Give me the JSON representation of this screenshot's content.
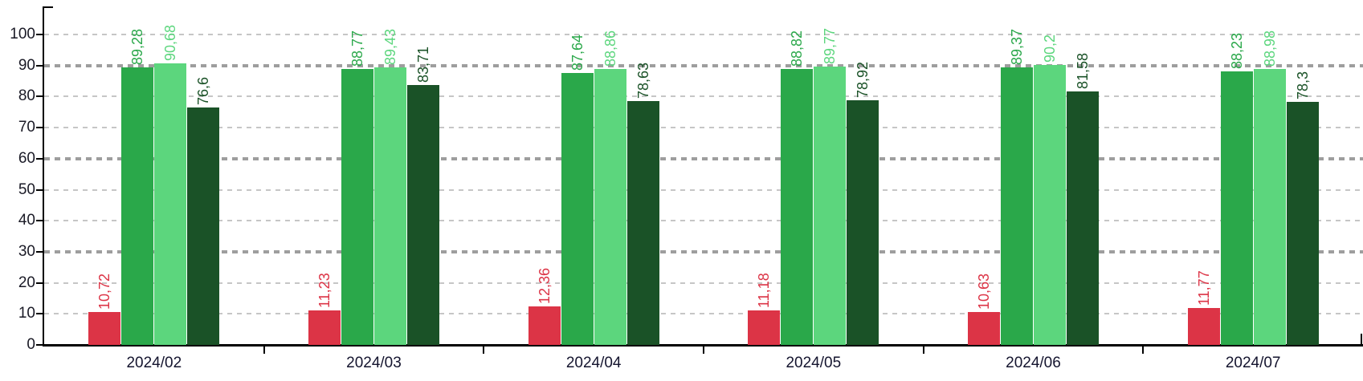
{
  "chart_data": {
    "type": "bar",
    "categories": [
      "2024/02",
      "2024/03",
      "2024/04",
      "2024/05",
      "2024/06",
      "2024/07"
    ],
    "series": [
      {
        "name": "red-series",
        "color": "#DC3446",
        "values": [
          10.72,
          11.23,
          12.36,
          11.18,
          10.63,
          11.77
        ],
        "labels": [
          "10,72",
          "11,23",
          "12,36",
          "11,18",
          "10,63",
          "11,77"
        ]
      },
      {
        "name": "green-series",
        "color": "#2AA84A",
        "values": [
          89.28,
          88.77,
          87.64,
          88.82,
          89.37,
          88.23
        ],
        "labels": [
          "89,28",
          "88,77",
          "87,64",
          "88,82",
          "89,37",
          "88,23"
        ]
      },
      {
        "name": "light-green-series",
        "color": "#5CD67D",
        "values": [
          90.68,
          89.43,
          88.86,
          89.77,
          90.2,
          88.98
        ],
        "labels": [
          "90,68",
          "89,43",
          "88,86",
          "89,77",
          "90,2",
          "88,98"
        ]
      },
      {
        "name": "dark-green-series",
        "color": "#1A5227",
        "values": [
          76.6,
          83.71,
          78.63,
          78.92,
          81.58,
          78.3
        ],
        "labels": [
          "76,6",
          "83,71",
          "78,63",
          "78,92",
          "81,58",
          "78,3"
        ]
      }
    ],
    "ylim": [
      0,
      100
    ],
    "yticks": [
      0,
      10,
      20,
      30,
      40,
      50,
      60,
      70,
      80,
      90,
      100
    ],
    "ytick_labels": [
      "0",
      "10",
      "20",
      "30",
      "40",
      "50",
      "60",
      "70",
      "80",
      "90",
      "100"
    ],
    "grid": {
      "horizontal": "dashed",
      "major_ticks": [
        30,
        60,
        90
      ],
      "major_color": "#9E9E9E",
      "minor_color": "#C6C6C6"
    },
    "legend": "none",
    "title": "",
    "xlabel": "",
    "ylabel": "",
    "axis_color": "#000000",
    "ytick_label_color": "#1A1A26",
    "category_label_color": "#14142E"
  }
}
